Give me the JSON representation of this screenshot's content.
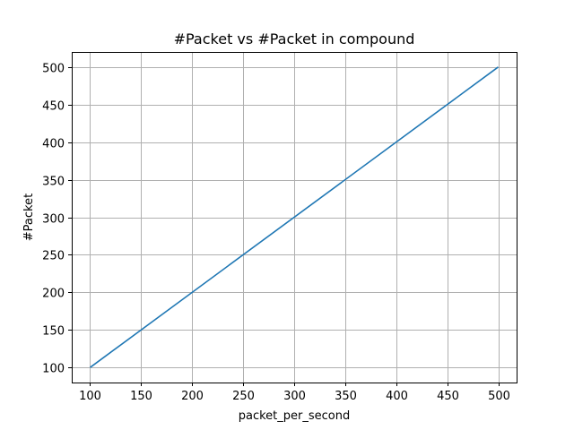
{
  "chart_data": {
    "type": "line",
    "title": "#Packet vs #Packet in compound",
    "xlabel": "packet_per_second",
    "ylabel": "#Packet",
    "x": [
      100,
      500
    ],
    "series": [
      {
        "values": [
          100,
          500
        ],
        "color": "#1f77b4"
      }
    ],
    "xlim": [
      82,
      518
    ],
    "ylim": [
      80,
      520
    ],
    "xticks": [
      100,
      150,
      200,
      250,
      300,
      350,
      400,
      450,
      500
    ],
    "yticks": [
      100,
      150,
      200,
      250,
      300,
      350,
      400,
      450,
      500
    ],
    "grid": true
  }
}
